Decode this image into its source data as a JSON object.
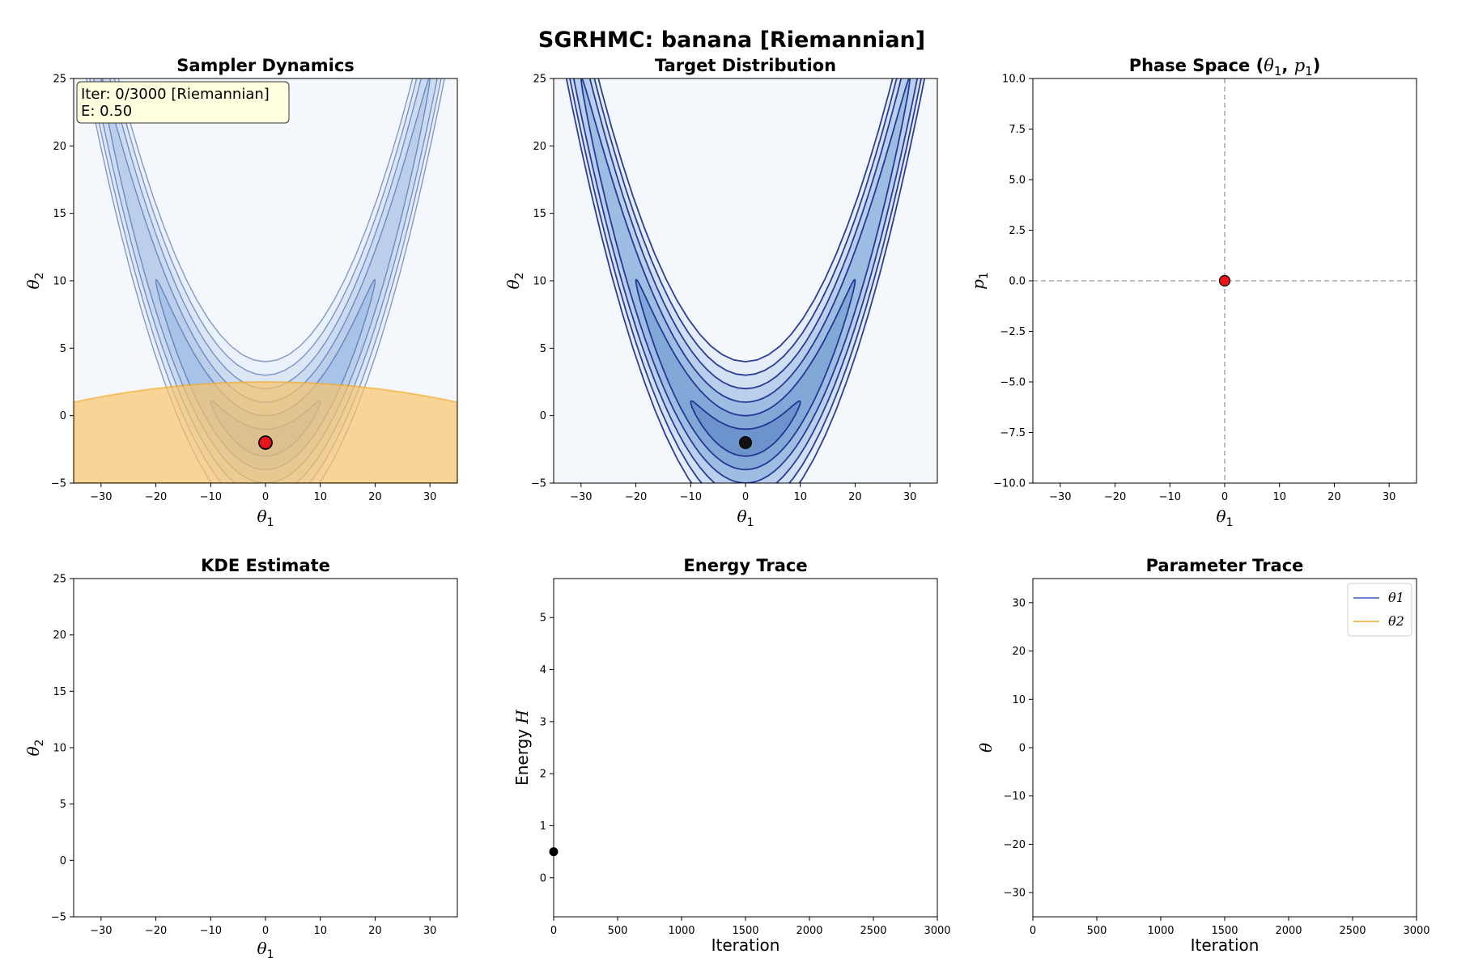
{
  "suptitle": "SGRHMC: banana [Riemannian]",
  "annotation": {
    "line1": "Iter: 0/3000 [Riemannian]",
    "line2": "E: 0.50"
  },
  "colors": {
    "accent_orange": "#f5a623",
    "contour_blue": "#1a2a8c",
    "field_blue": "#f4f8fd",
    "sample_red": "#e8141a",
    "ann_bg": "#ffffe0"
  },
  "legend": {
    "theta1": "θ1",
    "theta2": "θ2"
  },
  "chart_data": [
    {
      "id": "sampler",
      "type": "contour",
      "title": "Sampler Dynamics",
      "xlabel": "θ1",
      "ylabel": "θ2",
      "xlim": [
        -35,
        35
      ],
      "ylim": [
        -5,
        25
      ],
      "xticks": [
        -30,
        -20,
        -10,
        0,
        10,
        20,
        30
      ],
      "yticks": [
        -5,
        0,
        5,
        10,
        15,
        20,
        25
      ],
      "banana": {
        "b": 0.03,
        "y0": -2,
        "levels": [
          1,
          2,
          3,
          4,
          5,
          6
        ]
      },
      "current_point": [
        0,
        -2
      ],
      "mass_region": {
        "center_x": 0,
        "top_y": 2.5,
        "y_at_edge": 1.0
      }
    },
    {
      "id": "target",
      "type": "contour",
      "title": "Target Distribution",
      "xlabel": "θ1",
      "ylabel": "θ2",
      "xlim": [
        -35,
        35
      ],
      "ylim": [
        -5,
        25
      ],
      "xticks": [
        -30,
        -20,
        -10,
        0,
        10,
        20,
        30
      ],
      "yticks": [
        -5,
        0,
        5,
        10,
        15,
        20,
        25
      ],
      "banana": {
        "b": 0.03,
        "y0": -2,
        "levels": [
          1,
          2,
          3,
          4,
          5,
          6
        ]
      },
      "current_point": [
        0,
        -2
      ]
    },
    {
      "id": "phase",
      "type": "scatter",
      "title": "Phase Space (θ1, p1)",
      "xlabel": "θ1",
      "ylabel": "p1",
      "xlim": [
        -35,
        35
      ],
      "ylim": [
        -10,
        10
      ],
      "xticks": [
        -30,
        -20,
        -10,
        0,
        10,
        20,
        30
      ],
      "yticks": [
        -10,
        -7.5,
        -5,
        -2.5,
        0,
        2.5,
        5,
        7.5,
        10
      ],
      "ytick_labels": [
        "−10.0",
        "−7.5",
        "−5.0",
        "−2.5",
        "0.0",
        "2.5",
        "5.0",
        "7.5",
        "10.0"
      ],
      "point": [
        0,
        0
      ]
    },
    {
      "id": "kde",
      "type": "heatmap",
      "title": "KDE Estimate",
      "xlabel": "θ1",
      "ylabel": "θ2",
      "xlim": [
        -35,
        35
      ],
      "ylim": [
        -5,
        25
      ],
      "xticks": [
        -30,
        -20,
        -10,
        0,
        10,
        20,
        30
      ],
      "yticks": [
        -5,
        0,
        5,
        10,
        15,
        20,
        25
      ]
    },
    {
      "id": "energy",
      "type": "line",
      "title": "Energy Trace",
      "xlabel": "Iteration",
      "ylabel": "Energy H",
      "xlim": [
        0,
        3000
      ],
      "ylim": [
        -0.75,
        5.75
      ],
      "xticks": [
        0,
        500,
        1000,
        1500,
        2000,
        2500,
        3000
      ],
      "yticks": [
        0,
        1,
        2,
        3,
        4,
        5
      ],
      "points": [
        [
          0,
          0.5
        ]
      ]
    },
    {
      "id": "params",
      "type": "line",
      "title": "Parameter Trace",
      "xlabel": "Iteration",
      "ylabel": "θ",
      "xlim": [
        0,
        3000
      ],
      "ylim": [
        -35,
        35
      ],
      "xticks": [
        0,
        500,
        1000,
        1500,
        2000,
        2500,
        3000
      ],
      "yticks": [
        -30,
        -20,
        -10,
        0,
        10,
        20,
        30
      ],
      "series": [
        {
          "name": "θ1",
          "values": []
        },
        {
          "name": "θ2",
          "values": []
        }
      ]
    }
  ]
}
